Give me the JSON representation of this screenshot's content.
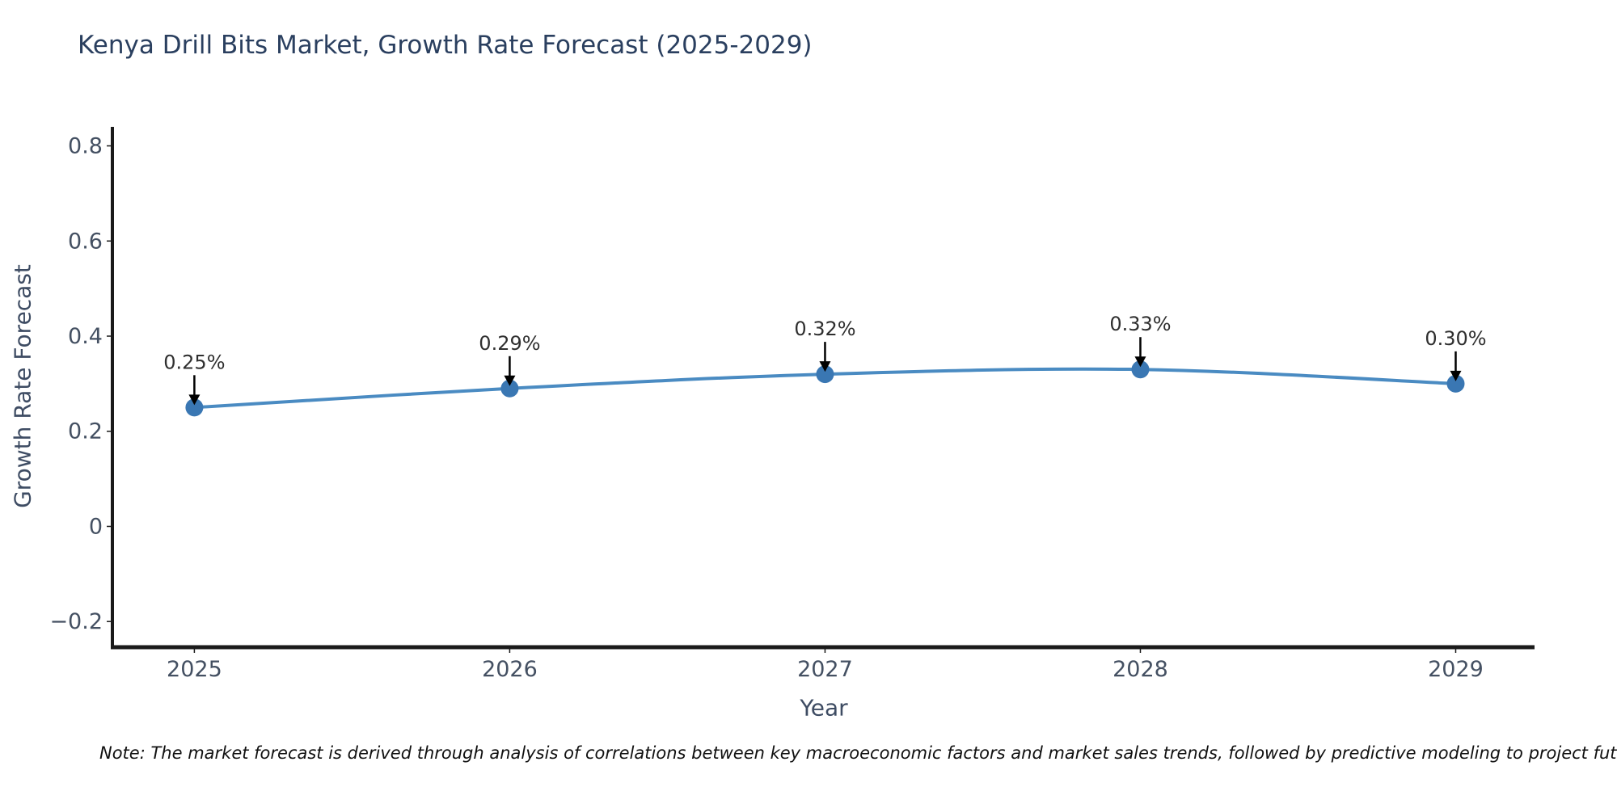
{
  "page": {
    "title": "Kenya Drill Bits Market, Growth Rate Forecast (2025-2029)",
    "note": "Note: The market forecast is derived through analysis of correlations between key macroeconomic factors and market sales trends, followed by predictive modeling to project future sales."
  },
  "chart_data": {
    "type": "line",
    "title": "Kenya Drill Bits Market, Growth Rate Forecast (2025-2029)",
    "xlabel": "Year",
    "ylabel": "Growth Rate Forecast",
    "x": [
      2025,
      2026,
      2027,
      2028,
      2029
    ],
    "series": [
      {
        "name": "Growth Rate Forecast",
        "values": [
          0.25,
          0.29,
          0.32,
          0.33,
          0.3
        ]
      }
    ],
    "point_labels": [
      "0.25%",
      "0.29%",
      "0.32%",
      "0.33%",
      "0.30%"
    ],
    "xtick_labels": [
      "2025",
      "2026",
      "2027",
      "2028",
      "2029"
    ],
    "ytick_values": [
      -0.2,
      0,
      0.2,
      0.4,
      0.6,
      0.8
    ],
    "ytick_labels": [
      "−0.2",
      "0",
      "0.2",
      "0.4",
      "0.6",
      "0.8"
    ],
    "xlim": [
      2024.74,
      2029.25
    ],
    "ylim": [
      -0.254,
      0.84
    ],
    "grid": false,
    "legend": false,
    "smooth_line": true,
    "colors": {
      "line": "#4a8bc2",
      "marker": "#3a77b3",
      "spine": "#1a1a1a",
      "arrow": "#000000",
      "title_text": "#2a3f5f",
      "axis_label_text": "#3e4c63",
      "tick_text": "#445062",
      "annotation_text": "#2f2f2f"
    }
  }
}
